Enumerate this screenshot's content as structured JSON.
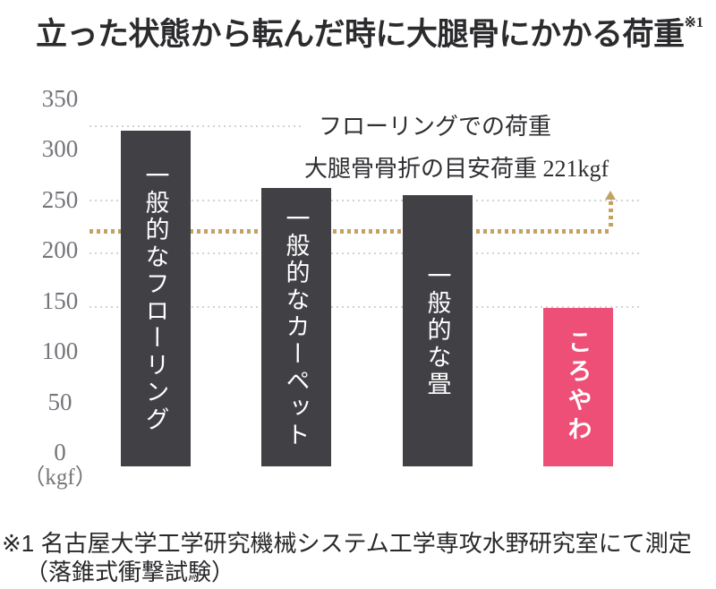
{
  "title": {
    "text": "立った状態から転んだ時に大腿骨にかかる荷重",
    "superscript": "※1"
  },
  "chart_data": {
    "type": "bar",
    "categories": [
      "一般的なフローリング",
      "一般的なカーペット",
      "一般的な畳",
      "ころやわ"
    ],
    "values": [
      315,
      261,
      255,
      149
    ],
    "unit": "kgf",
    "ylim": [
      0,
      350
    ],
    "yticks": [
      350,
      300,
      250,
      200,
      150,
      100,
      50,
      0
    ],
    "y_axis_unit_label": "（kgf）",
    "grid": "dotted-partial",
    "gridlines_at": [
      250,
      200,
      150
    ],
    "legend_position": "none",
    "bar_names": [
      "bar-flooring",
      "bar-carpet",
      "bar-tatami",
      "bar-koroyawa"
    ],
    "bar_colors": [
      "#404045",
      "#404045",
      "#404045",
      "#ee4f77"
    ],
    "highlight_index": 3,
    "annotations": {
      "flooring": {
        "level": 319,
        "label": "フローリングでの荷重",
        "line_color": "#d2d2d2"
      },
      "fracture_threshold": {
        "level": 221,
        "label": "大腿骨骨折の目安荷重 221kgf",
        "line_color": "#c3a263"
      }
    },
    "colors": {
      "bar_default": "#404045",
      "bar_highlight": "#ee4f77",
      "gridline": "#d2d2d2",
      "threshold_line": "#c3a263",
      "tick_text": "#74747a",
      "text": "#2e2e32"
    }
  },
  "footnote": {
    "line1": "※1 名古屋大学工学研究機械システム工学専攻水野研究室にて測定",
    "line2": "（落錐式衝撃試験）"
  }
}
